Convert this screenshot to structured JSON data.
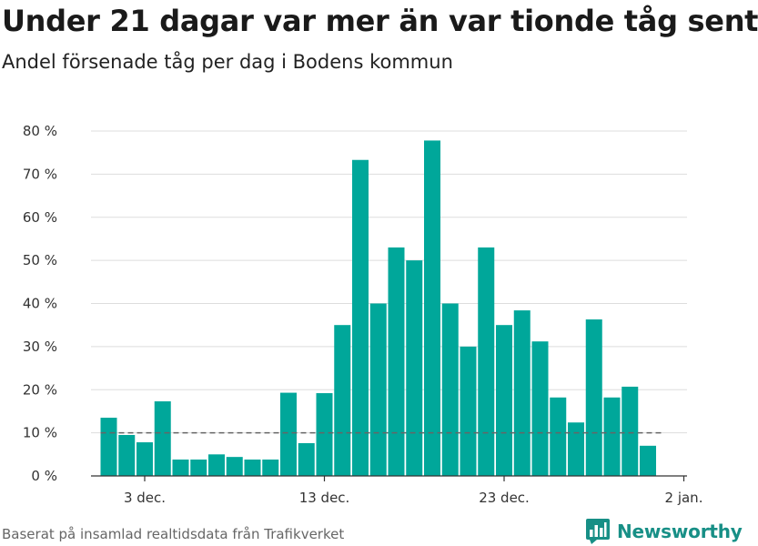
{
  "colors": {
    "bar": "#00a79a",
    "accent": "#178f86",
    "grid": "#dddddd",
    "threshold": "#666666"
  },
  "brand": {
    "name": "Newsworthy",
    "icon": "bar-chart-speech-icon"
  },
  "footer": {
    "source": "Baserat på insamlad realtidsdata från Trafikverket"
  },
  "chart_data": {
    "type": "bar",
    "title": "Under 21 dagar var mer än var tionde tåg sent",
    "subtitle": "Andel försenade tåg per dag i Bodens kommun",
    "xlabel": "",
    "ylabel": "",
    "ylim": [
      0,
      80
    ],
    "y_ticks": [
      0,
      10,
      20,
      30,
      40,
      50,
      60,
      70,
      80
    ],
    "y_tick_labels": [
      "0 %",
      "10 %",
      "20 %",
      "30 %",
      "40 %",
      "50 %",
      "60 %",
      "70 %",
      "80 %"
    ],
    "x_ticks": [
      {
        "day": 2,
        "label": "3 dec."
      },
      {
        "day": 12,
        "label": "13 dec."
      },
      {
        "day": 22,
        "label": "23 dec."
      },
      {
        "day": 32,
        "label": "2 jan."
      }
    ],
    "x_range": [
      -2.5,
      32
    ],
    "threshold": 10,
    "grid": true,
    "values": [
      13.5,
      9.5,
      7.8,
      17.3,
      3.8,
      3.8,
      5.0,
      4.4,
      3.8,
      3.8,
      19.3,
      7.6,
      19.2,
      35.0,
      73.3,
      40.0,
      53.0,
      50.0,
      77.8,
      40.0,
      30.0,
      53.0,
      35.0,
      38.4,
      31.2,
      18.2,
      12.4,
      36.3,
      18.2,
      20.7,
      7.0
    ]
  }
}
